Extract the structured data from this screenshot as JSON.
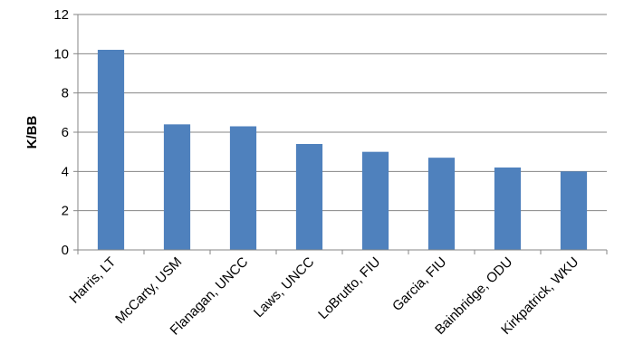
{
  "chart_data": {
    "type": "bar",
    "title": "",
    "xlabel": "",
    "ylabel": "K/BB",
    "ylim": [
      0,
      12
    ],
    "yticks": [
      0,
      2,
      4,
      6,
      8,
      10,
      12
    ],
    "grid": true,
    "legend": "none",
    "bar_color": "#4f81bd",
    "categories": [
      "Harris, LT",
      "McCarty, USM",
      "Flanagan, UNCC",
      "Laws, UNCC",
      "LoBrutto, FIU",
      "Garcia, FIU",
      "Bainbridge, ODU",
      "Kirkpatrick, WKU"
    ],
    "values": [
      10.2,
      6.4,
      6.3,
      5.4,
      5.0,
      4.7,
      4.2,
      4.0
    ]
  }
}
